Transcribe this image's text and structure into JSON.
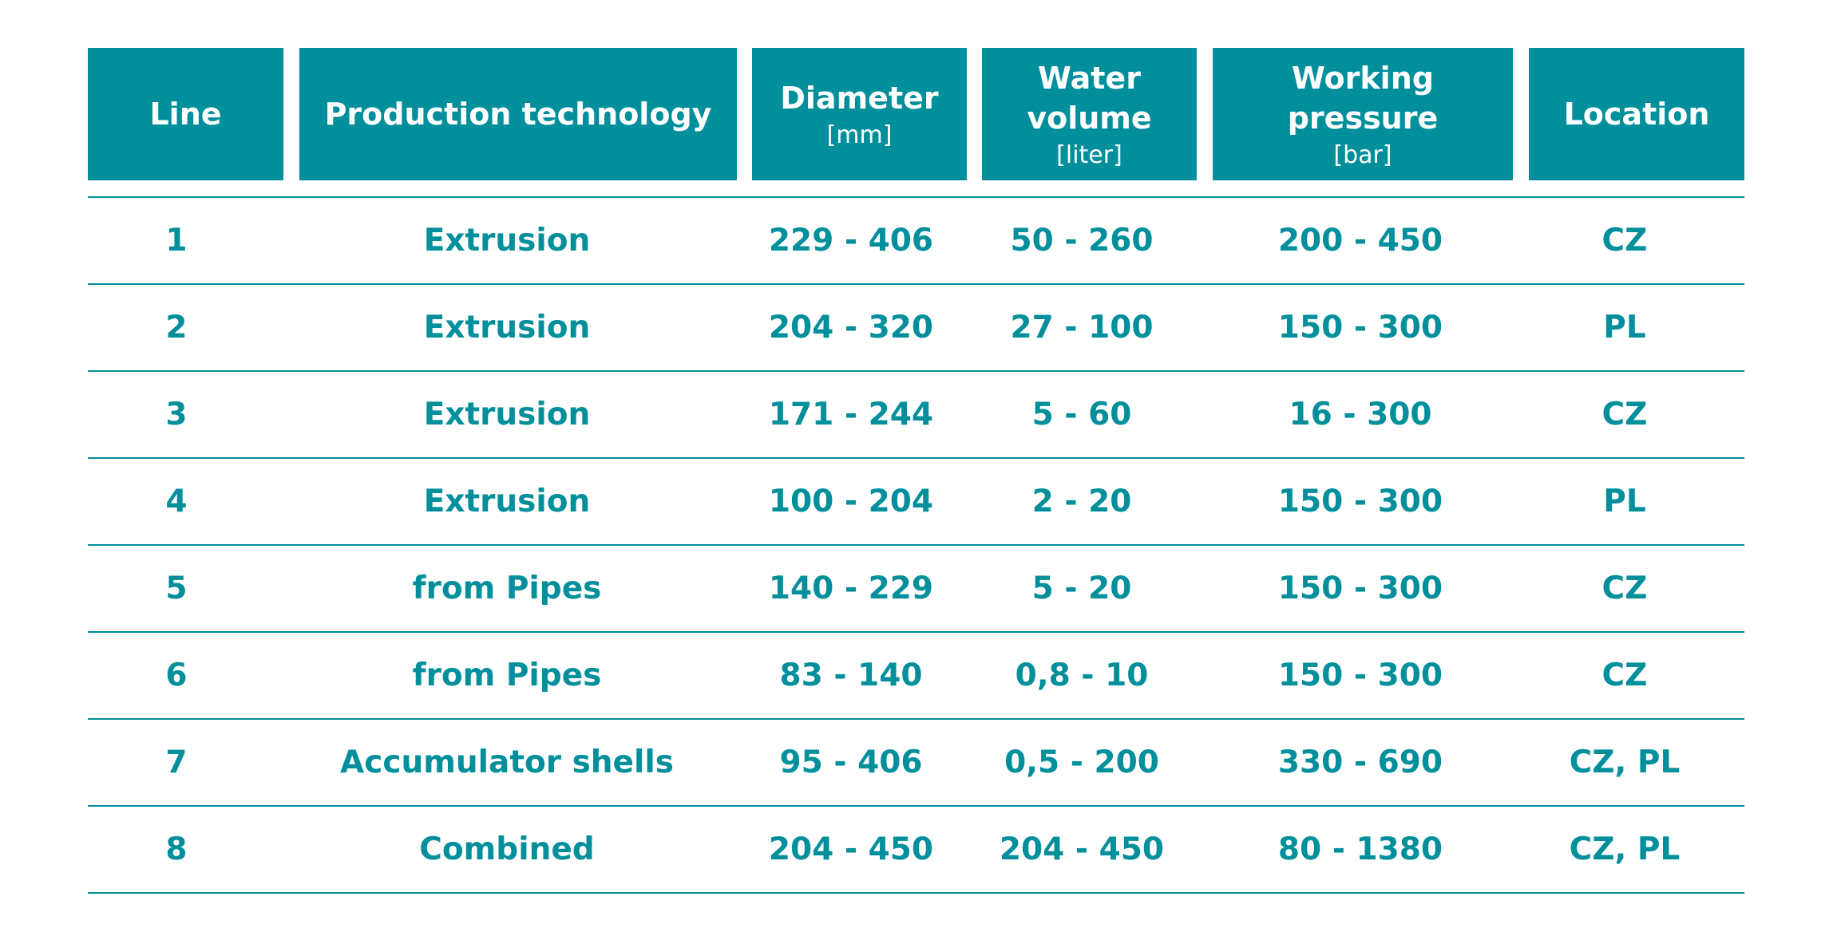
{
  "headers": [
    {
      "title": "Line",
      "unit": ""
    },
    {
      "title": "Production technology",
      "unit": ""
    },
    {
      "title": "Diameter",
      "unit": "[mm]"
    },
    {
      "title": "Water\nvolume",
      "unit": "[liter]"
    },
    {
      "title": "Working\npressure",
      "unit": "[bar]"
    },
    {
      "title": "Location",
      "unit": ""
    }
  ],
  "rows": [
    {
      "line": "1",
      "technology": "Extrusion",
      "diameter": "229 - 406",
      "volume": "50 - 260",
      "pressure": "200 - 450",
      "location": "CZ"
    },
    {
      "line": "2",
      "technology": "Extrusion",
      "diameter": "204 - 320",
      "volume": "27 - 100",
      "pressure": "150 - 300",
      "location": "PL"
    },
    {
      "line": "3",
      "technology": "Extrusion",
      "diameter": "171 - 244",
      "volume": "5 - 60",
      "pressure": "16 - 300",
      "location": "CZ"
    },
    {
      "line": "4",
      "technology": "Extrusion",
      "diameter": "100 - 204",
      "volume": "2 - 20",
      "pressure": "150 - 300",
      "location": "PL"
    },
    {
      "line": "5",
      "technology": "from Pipes",
      "diameter": "140 - 229",
      "volume": "5 - 20",
      "pressure": "150 - 300",
      "location": "CZ"
    },
    {
      "line": "6",
      "technology": "from Pipes",
      "diameter": "83 - 140",
      "volume": "0,8 - 10",
      "pressure": "150 - 300",
      "location": "CZ"
    },
    {
      "line": "7",
      "technology": "Accumulator shells",
      "diameter": "95 - 406",
      "volume": "0,5 - 200",
      "pressure": "330 - 690",
      "location": "CZ, PL"
    },
    {
      "line": "8",
      "technology": "Combined",
      "diameter": "204 - 450",
      "volume": "204 - 450",
      "pressure": "80 - 1380",
      "location": "CZ, PL"
    }
  ],
  "colors": {
    "accent": "#018f9c",
    "header_text": "#ffffff"
  }
}
